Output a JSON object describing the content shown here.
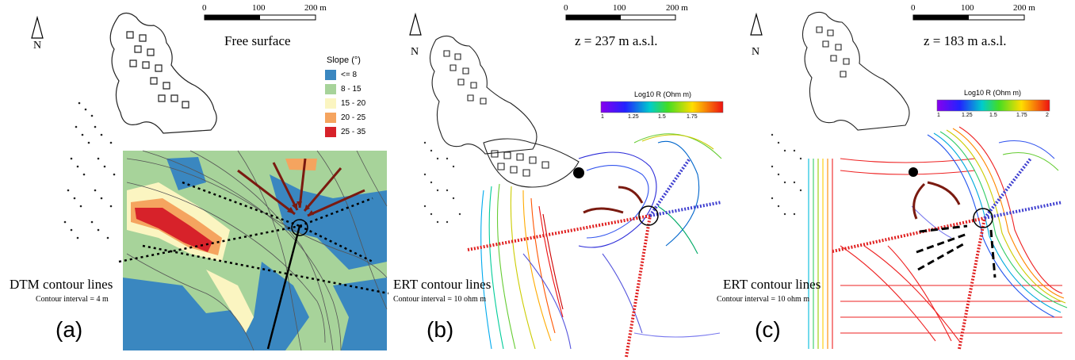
{
  "panels": [
    {
      "letter": "(a)",
      "title": "Free surface",
      "north_label": "N",
      "scale": {
        "t0": "0",
        "t1": "100",
        "t2": "200 m"
      },
      "contour_title": "DTM contour lines",
      "contour_sub": "Contour interval = 4 m",
      "legend": {
        "title": "Slope (°)",
        "items": [
          {
            "label": "<= 8",
            "color": "#3a87c0"
          },
          {
            "label": "8 - 15",
            "color": "#a7d39a"
          },
          {
            "label": "15 - 20",
            "color": "#fbf5c1"
          },
          {
            "label": "20 - 25",
            "color": "#f5a45f"
          },
          {
            "label": "25 - 35",
            "color": "#d7222a"
          }
        ]
      }
    },
    {
      "letter": "(b)",
      "title": "z = 237 m a.s.l.",
      "north_label": "N",
      "scale": {
        "t0": "0",
        "t1": "100",
        "t2": "200 m"
      },
      "contour_title": "ERT contour lines",
      "contour_sub": "Contour interval = 10 ohm m",
      "colorbar": {
        "title": "Log10 R (Ohm m)",
        "ticks": [
          "1",
          "1.25",
          "1.5",
          "1.75"
        ]
      }
    },
    {
      "letter": "(c)",
      "title": "z = 183 m a.s.l.",
      "north_label": "N",
      "scale": {
        "t0": "0",
        "t1": "100",
        "t2": "200 m"
      },
      "contour_title": "ERT contour lines",
      "contour_sub": "Contour interval = 10 ohm m",
      "colorbar": {
        "title": "Log10 R (Ohm m)",
        "ticks": [
          "1",
          "1.25",
          "1.5",
          "1.75",
          "2"
        ]
      }
    }
  ],
  "colors": {
    "slope_low": "#3a87c0",
    "slope_mid": "#a7d39a",
    "slope_high": "#d7222a",
    "flow_arrow": "#7a1a10",
    "ert_low": "#2a2ad8",
    "ert_high": "#e01818"
  }
}
